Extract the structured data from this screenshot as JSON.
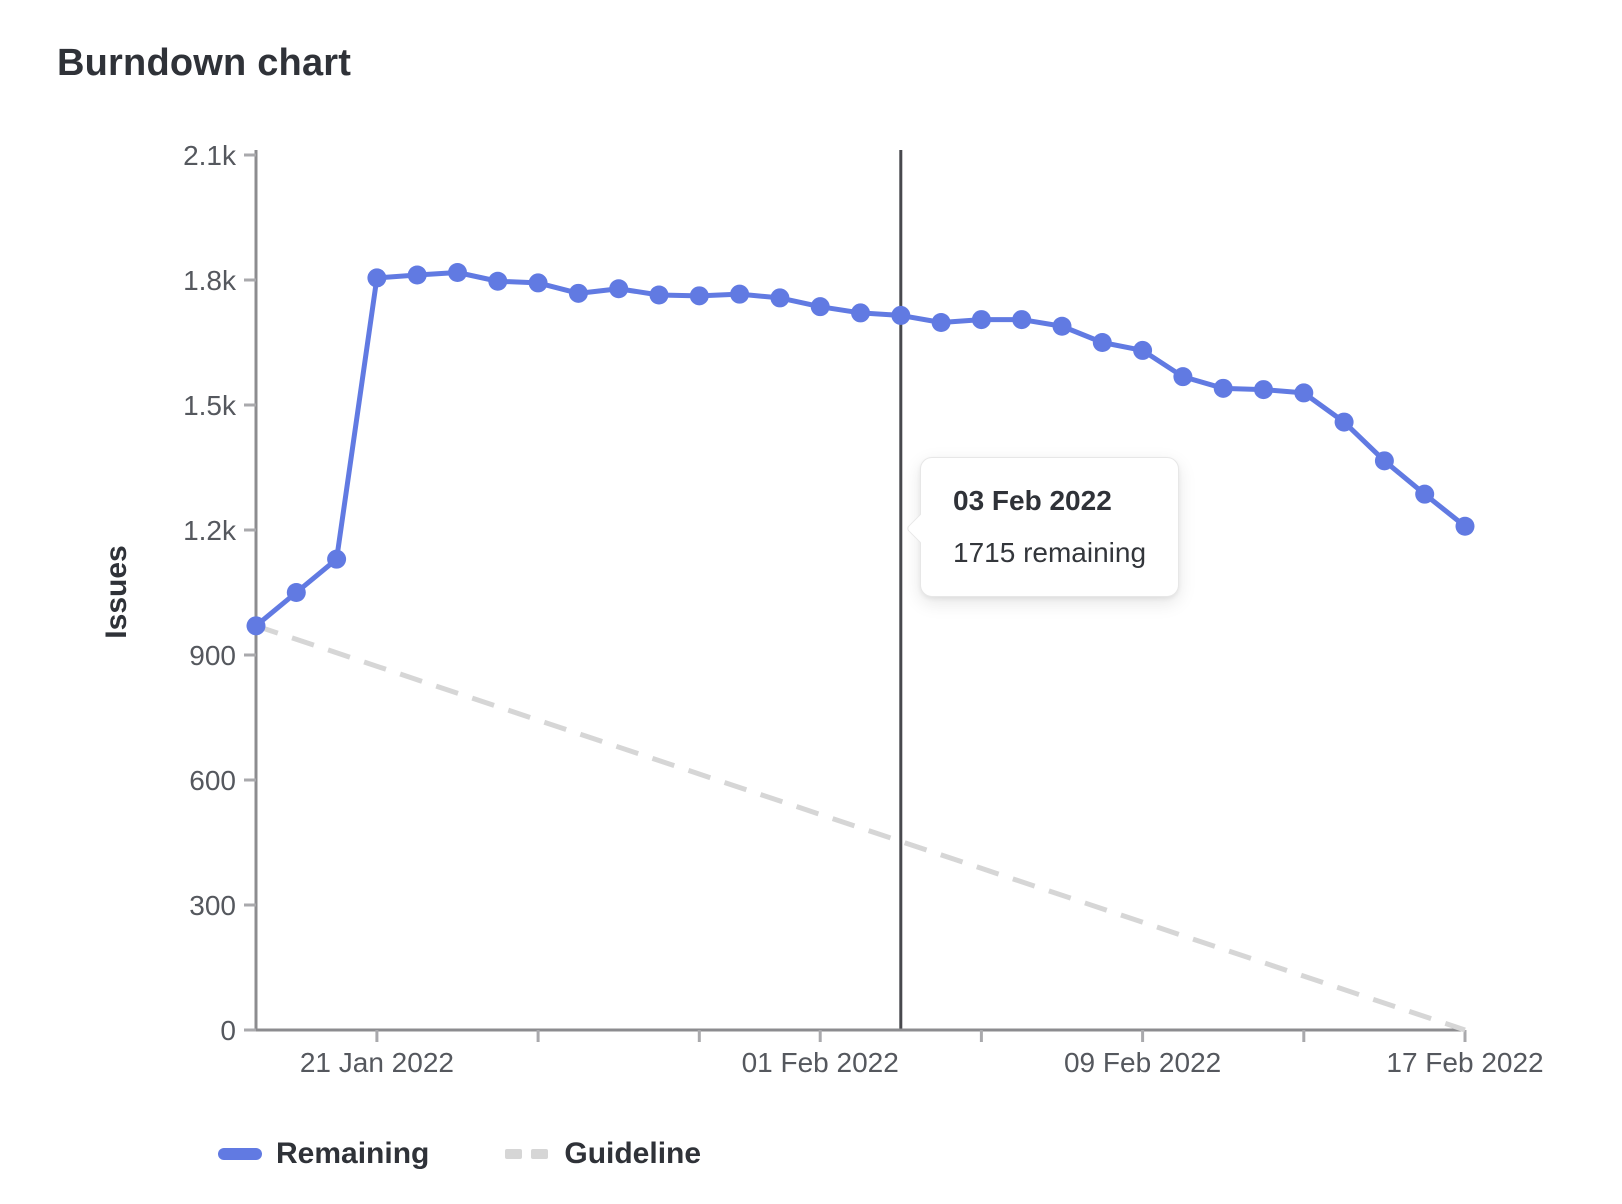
{
  "title": "Burndown chart",
  "colors": {
    "remaining": "#617ae2",
    "guideline": "#d6d6d6",
    "axis_line": "#8c8c8f",
    "tick_mark": "#a9a9ac",
    "tick_text": "#55585e",
    "axis_pointer": "#48494d"
  },
  "y_axis": {
    "title": "Issues",
    "ticks": [
      "0",
      "300",
      "600",
      "900",
      "1.2k",
      "1.5k",
      "1.8k",
      "2.1k"
    ]
  },
  "x_axis": {
    "tick_days": [
      3,
      7,
      11,
      14,
      18,
      22,
      26,
      30
    ],
    "labels": [
      {
        "text": "21 Jan 2022",
        "day": 3
      },
      {
        "text": "01 Feb 2022",
        "day": 14
      },
      {
        "text": "09 Feb 2022",
        "day": 22
      },
      {
        "text": "17 Feb 2022",
        "day": 30
      }
    ]
  },
  "tooltip": {
    "title": "03 Feb 2022",
    "value": "1715 remaining",
    "day": 16
  },
  "legend": {
    "items": [
      {
        "label": "Remaining",
        "type": "line"
      },
      {
        "label": "Guideline",
        "type": "dashed"
      }
    ]
  },
  "chart_data": {
    "type": "line",
    "title": "Burndown chart",
    "xlabel": "",
    "ylabel": "Issues",
    "ylim": [
      0,
      2100
    ],
    "grid": false,
    "legend_position": "bottom",
    "x": [
      "18 Jan 2022",
      "19 Jan 2022",
      "20 Jan 2022",
      "21 Jan 2022",
      "22 Jan 2022",
      "23 Jan 2022",
      "24 Jan 2022",
      "25 Jan 2022",
      "26 Jan 2022",
      "27 Jan 2022",
      "28 Jan 2022",
      "29 Jan 2022",
      "30 Jan 2022",
      "31 Jan 2022",
      "01 Feb 2022",
      "02 Feb 2022",
      "03 Feb 2022",
      "04 Feb 2022",
      "05 Feb 2022",
      "06 Feb 2022",
      "07 Feb 2022",
      "08 Feb 2022",
      "09 Feb 2022",
      "10 Feb 2022",
      "11 Feb 2022",
      "12 Feb 2022",
      "13 Feb 2022",
      "14 Feb 2022",
      "15 Feb 2022",
      "16 Feb 2022",
      "17 Feb 2022"
    ],
    "series": [
      {
        "name": "Remaining",
        "values": [
          970,
          1050,
          1130,
          1805,
          1812,
          1818,
          1797,
          1793,
          1768,
          1779,
          1764,
          1762,
          1766,
          1757,
          1736,
          1721,
          1715,
          1698,
          1705,
          1705,
          1689,
          1650,
          1631,
          1568,
          1540,
          1537,
          1529,
          1459,
          1366,
          1286,
          1209
        ]
      },
      {
        "name": "Guideline",
        "shape": "linear",
        "start": 970,
        "end": 0
      }
    ]
  }
}
